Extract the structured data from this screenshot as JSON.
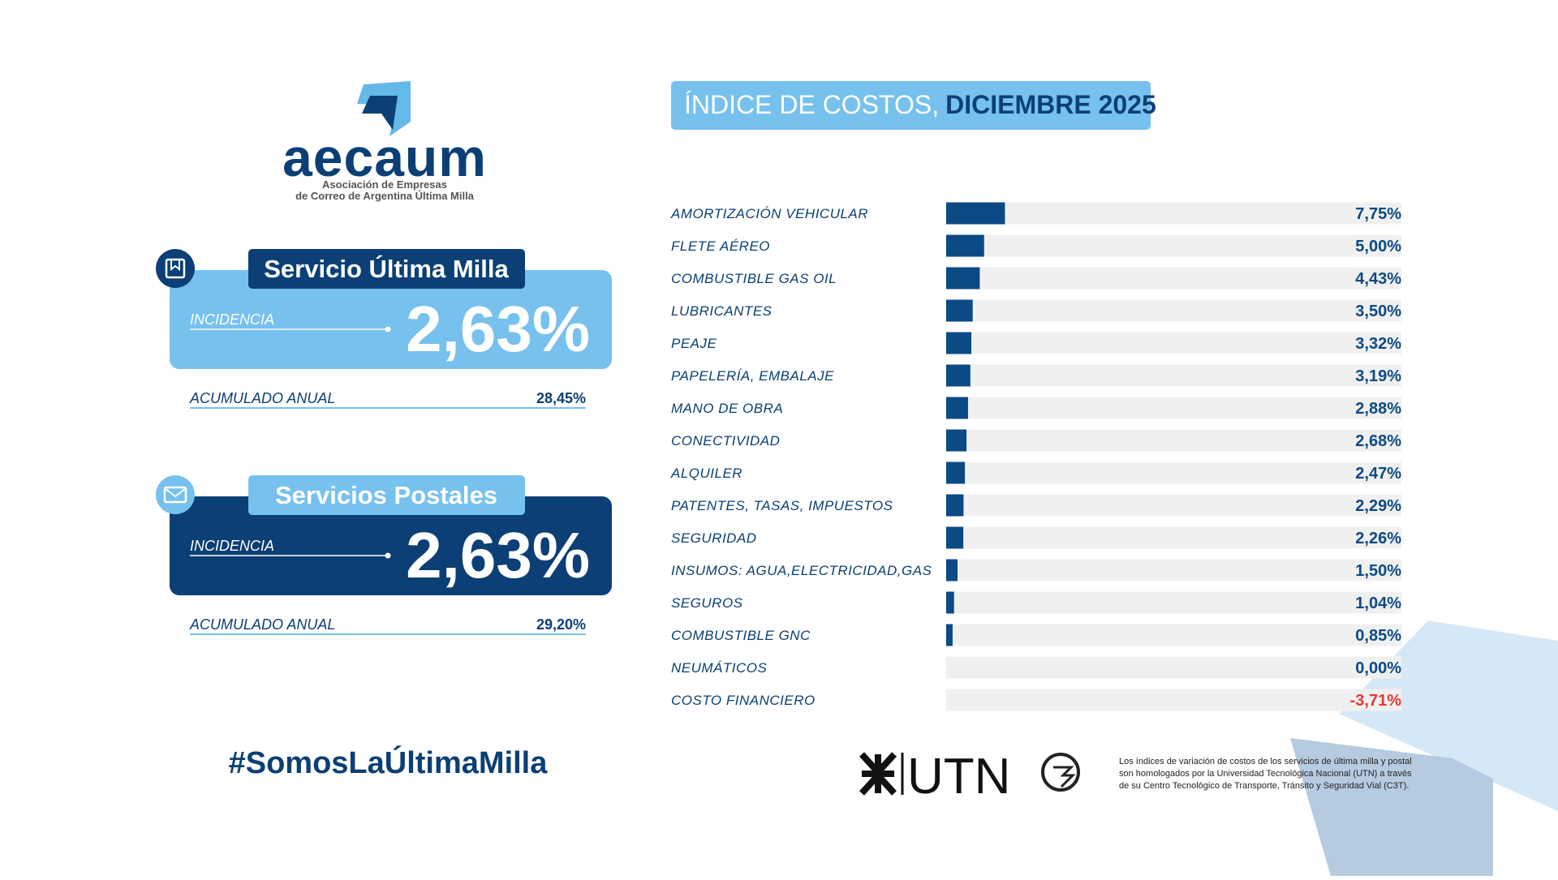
{
  "logo": {
    "name": "aecaum",
    "subtitle_lines": [
      "Asociación de Empresas",
      "de Correo de Argentina Última Milla"
    ]
  },
  "cards": [
    {
      "title": "Servicio Última Milla",
      "incidence_label": "INCIDENCIA",
      "incidence": "2,63%",
      "annual_label": "ACUMULADO ANUAL",
      "annual": "28,45%"
    },
    {
      "title": "Servicios Postales",
      "incidence_label": "INCIDENCIA",
      "incidence": "2,63%",
      "annual_label": "ACUMULADO ANUAL",
      "annual": "29,20%"
    }
  ],
  "hashtag": "#SomosLaÚltimaMilla",
  "chart_data": {
    "type": "bar",
    "orientation": "horizontal",
    "title": "ÍNDICE DE COSTOS,",
    "title_emphasis": "DICIEMBRE 2025",
    "categories": [
      "AMORTIZACIÓN VEHICULAR",
      "FLETE AÉREO",
      "COMBUSTIBLE GAS OIL",
      "LUBRICANTES",
      "PEAJE",
      "PAPELERÍA, EMBALAJE",
      "MANO DE OBRA",
      "CONECTIVIDAD",
      "ALQUILER",
      "PATENTES, TASAS, IMPUESTOS",
      "SEGURIDAD",
      "INSUMOS: AGUA,ELECTRICIDAD,GAS",
      "SEGUROS",
      "COMBUSTIBLE GNC",
      "NEUMÁTICOS",
      "COSTO FINANCIERO"
    ],
    "values": [
      7.75,
      5.0,
      4.43,
      3.5,
      3.32,
      3.19,
      2.88,
      2.68,
      2.47,
      2.29,
      2.26,
      1.5,
      1.04,
      0.85,
      0.0,
      -3.71
    ],
    "value_labels": [
      "7,75%",
      "5,00%",
      "4,43%",
      "3,50%",
      "3,32%",
      "3,19%",
      "2,88%",
      "2,68%",
      "2,47%",
      "2,29%",
      "2,26%",
      "1,50%",
      "1,04%",
      "0,85%",
      "0,00%",
      "-3,71%"
    ],
    "color": "#0b4a84",
    "track_color": "#f0f0f0",
    "negative_color": "#e53935",
    "xlim": [
      0,
      60
    ]
  },
  "footer": {
    "logo": "UTN",
    "note_lines": [
      "Los índices de variación de costos de los servicios de última milla y postal",
      "son homologados por la Universidad Tecnológica Nacional (UTN) a través",
      "de su Centro Tecnológico de Transporte, Tránsito y Seguridad Vial (C3T)."
    ]
  }
}
